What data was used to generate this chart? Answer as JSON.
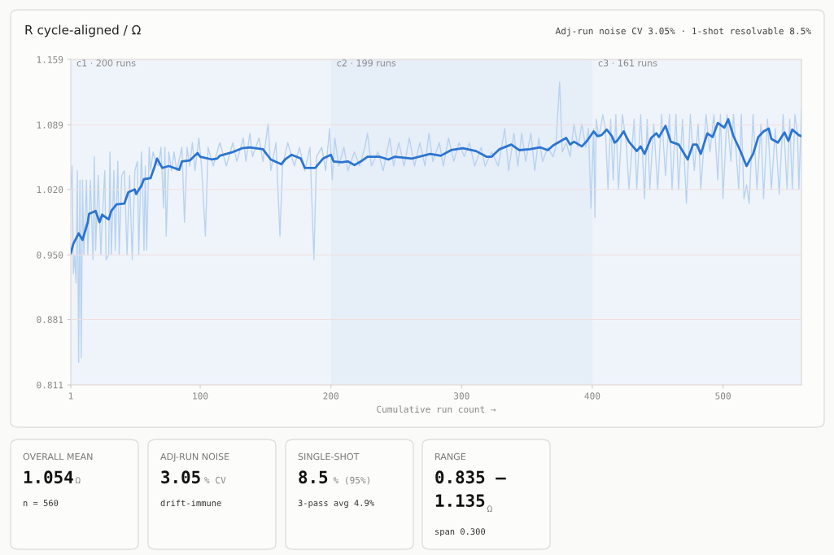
{
  "chart_data": [
    {
      "type": "line",
      "title": "R cycle-aligned / Ω",
      "subtitle": "Adj-run noise CV 3.05% · 1-shot resolvable 8.5%",
      "xlabel": "Cumulative run count →",
      "xlim": [
        1,
        560
      ],
      "xticks": [
        1,
        100,
        200,
        300,
        400,
        500
      ],
      "ylim": [
        0.811,
        1.159
      ],
      "yticks": [
        0.811,
        0.881,
        {
          "value": 0.95,
          "label": "0.950"
        },
        {
          "value": 1.02,
          "label": "1.020"
        },
        1.089,
        1.159
      ],
      "grid": "y",
      "marker": "none",
      "line_style": "solid",
      "bands": [
        {
          "axis": "x",
          "from": 1,
          "to": 200,
          "label": "c1 · 200 runs",
          "color": "#eff4fa"
        },
        {
          "axis": "x",
          "from": 200,
          "to": 400,
          "label": "c2 · 199 runs",
          "color": "#e6eef8"
        },
        {
          "axis": "x",
          "from": 400,
          "to": 560,
          "label": "c3 · 161 runs",
          "color": "#eff4fa"
        }
      ],
      "series": [
        {
          "color": "#b8d2ef",
          "x": [
            1,
            2,
            3,
            4,
            5,
            6,
            7,
            8,
            9,
            10,
            11,
            13,
            14,
            16,
            18,
            19,
            20,
            22,
            24,
            25,
            27,
            28,
            30,
            31,
            32,
            34,
            35,
            37,
            38,
            40,
            42,
            44,
            46,
            48,
            50,
            52,
            53,
            55,
            56,
            57,
            58,
            59,
            61,
            62,
            64,
            66,
            68,
            70,
            72,
            73,
            74,
            76,
            78,
            80,
            82,
            86,
            88,
            90,
            92,
            94,
            96,
            99,
            101,
            104,
            106,
            110,
            115,
            120,
            125,
            128,
            133,
            135,
            138,
            140,
            145,
            148,
            152,
            154,
            158,
            161,
            163,
            167,
            172,
            176,
            180,
            184,
            187,
            189,
            193,
            196,
            199,
            201,
            203,
            206,
            210,
            213,
            218,
            222,
            226,
            228,
            231,
            236,
            240,
            245,
            248,
            252,
            256,
            260,
            264,
            268,
            272,
            275,
            278,
            283,
            286,
            290,
            294,
            298,
            302,
            306,
            310,
            315,
            318,
            323,
            328,
            333,
            336,
            340,
            343,
            346,
            349,
            353,
            356,
            359,
            362,
            366,
            370,
            372,
            375,
            377,
            380,
            383,
            386,
            389,
            392,
            395,
            397,
            399,
            401,
            402,
            403,
            405,
            408,
            410,
            412,
            414,
            416,
            418,
            420,
            423,
            426,
            428,
            432,
            434,
            437,
            440,
            442,
            444,
            447,
            450,
            453,
            456,
            459,
            461,
            464,
            466,
            469,
            472,
            475,
            478,
            481,
            483,
            487,
            490,
            493,
            496,
            498,
            500,
            503,
            506,
            508,
            512,
            514,
            516,
            518,
            520,
            523,
            526,
            529,
            531,
            534,
            537,
            540,
            543,
            546,
            549,
            551,
            553,
            555,
            557,
            558,
            560
          ],
          "values": [
            1.02,
            1.045,
            0.93,
            0.95,
            0.92,
            1.04,
            0.835,
            1.03,
            0.84,
            1.03,
            0.95,
            1.03,
            0.95,
            1.03,
            0.945,
            1.055,
            0.955,
            1.035,
            0.95,
            0.985,
            1.04,
            0.945,
            0.95,
            1.06,
            0.95,
            1.04,
            0.955,
            1.05,
            0.95,
            1.035,
            1.04,
            0.95,
            1.035,
            0.945,
            1.04,
            1.05,
            0.95,
            1.06,
            1.02,
            0.955,
            1.045,
            0.955,
            1.065,
            1.04,
            1.06,
            1.05,
            1.045,
            1.065,
            1.0,
            1.065,
            0.97,
            1.06,
            1.04,
            1.06,
            1.04,
            1.065,
            0.985,
            1.065,
            1.045,
            1.07,
            1.04,
            1.075,
            1.045,
            0.97,
            1.065,
            1.045,
            1.07,
            1.045,
            1.07,
            1.05,
            1.075,
            1.05,
            1.08,
            1.055,
            1.075,
            1.05,
            1.09,
            1.04,
            1.07,
            0.97,
            1.045,
            1.07,
            1.045,
            1.065,
            1.04,
            1.065,
            0.945,
            1.055,
            1.065,
            1.04,
            1.085,
            1.03,
            1.075,
            1.045,
            1.065,
            1.04,
            1.06,
            1.045,
            1.065,
            1.08,
            1.045,
            1.06,
            1.04,
            1.075,
            1.045,
            1.07,
            1.045,
            1.075,
            1.045,
            1.07,
            1.045,
            1.08,
            1.05,
            1.07,
            1.045,
            1.075,
            1.05,
            1.07,
            1.055,
            1.07,
            1.045,
            1.065,
            1.045,
            1.06,
            1.045,
            1.085,
            1.04,
            1.08,
            1.045,
            1.08,
            1.05,
            1.08,
            1.04,
            1.075,
            1.05,
            1.065,
            1.055,
            1.065,
            1.135,
            1.06,
            1.07,
            1.055,
            1.09,
            1.065,
            1.09,
            1.065,
            1.085,
            1.0,
            1.085,
            0.99,
            1.095,
            1.075,
            1.1,
            1.085,
            1.02,
            1.095,
            1.03,
            1.1,
            1.02,
            1.1,
            1.07,
            1.02,
            1.095,
            1.02,
            1.1,
            1.01,
            1.095,
            1.02,
            1.09,
            1.02,
            1.1,
            1.035,
            1.1,
            1.02,
            1.1,
            1.02,
            1.095,
            1.005,
            1.1,
            1.04,
            1.09,
            1.02,
            1.1,
            1.06,
            1.1,
            1.03,
            1.1,
            1.01,
            1.1,
            1.05,
            1.1,
            1.02,
            1.1,
            1.01,
            1.025,
            1.005,
            1.1,
            1.02,
            1.09,
            1.01,
            1.095,
            1.02,
            1.085,
            1.015,
            1.1,
            1.02,
            1.095,
            1.02,
            1.1,
            1.08,
            1.02,
            1.105
          ]
        },
        {
          "color": "#2b74d0",
          "x": [
            1,
            3,
            7,
            10,
            14,
            15,
            20,
            23,
            25,
            30,
            32,
            36,
            42,
            45,
            50,
            51,
            55,
            57,
            62,
            65,
            67,
            71,
            76,
            84,
            86,
            92,
            98,
            100,
            109,
            113,
            115,
            125,
            132,
            138,
            148,
            154,
            162,
            165,
            170,
            177,
            180,
            188,
            194,
            200,
            202,
            208,
            213,
            218,
            223,
            228,
            237,
            244,
            249,
            262,
            276,
            284,
            292,
            301,
            311,
            319,
            323,
            329,
            338,
            344,
            352,
            360,
            366,
            370,
            380,
            383,
            386,
            392,
            396,
            401,
            404,
            407,
            411,
            415,
            417,
            419,
            424,
            428,
            434,
            437,
            440,
            445,
            449,
            451,
            456,
            460,
            466,
            473,
            477,
            480,
            483,
            488,
            492,
            496,
            501,
            504,
            508,
            513,
            518,
            523,
            527,
            531,
            535,
            537,
            542,
            547,
            550,
            553,
            558,
            560
          ],
          "values": [
            0.952,
            0.962,
            0.973,
            0.966,
            0.985,
            0.994,
            0.997,
            0.985,
            0.993,
            0.988,
            0.997,
            1.004,
            1.005,
            1.017,
            1.02,
            1.015,
            1.024,
            1.031,
            1.032,
            1.044,
            1.053,
            1.043,
            1.045,
            1.041,
            1.05,
            1.051,
            1.059,
            1.055,
            1.052,
            1.053,
            1.056,
            1.06,
            1.064,
            1.065,
            1.063,
            1.052,
            1.047,
            1.052,
            1.057,
            1.053,
            1.043,
            1.043,
            1.053,
            1.057,
            1.05,
            1.049,
            1.05,
            1.046,
            1.05,
            1.055,
            1.055,
            1.052,
            1.055,
            1.053,
            1.058,
            1.056,
            1.062,
            1.064,
            1.061,
            1.055,
            1.055,
            1.063,
            1.068,
            1.062,
            1.063,
            1.065,
            1.062,
            1.067,
            1.075,
            1.068,
            1.071,
            1.066,
            1.072,
            1.082,
            1.077,
            1.078,
            1.084,
            1.077,
            1.07,
            1.072,
            1.082,
            1.071,
            1.061,
            1.066,
            1.058,
            1.075,
            1.08,
            1.076,
            1.088,
            1.071,
            1.068,
            1.052,
            1.068,
            1.068,
            1.058,
            1.08,
            1.076,
            1.091,
            1.086,
            1.095,
            1.077,
            1.062,
            1.045,
            1.058,
            1.076,
            1.082,
            1.085,
            1.074,
            1.07,
            1.081,
            1.072,
            1.084,
            1.078,
            1.077
          ]
        }
      ]
    },
    {
      "type": "other",
      "annotations": [
        "OVERALL MEAN",
        "1.054",
        "Ω",
        "n = 560",
        "ADJ-RUN NOISE",
        "3.05",
        "% CV",
        "drift-immune",
        "SINGLE-SHOT",
        "8.5",
        "% (95%)",
        "3-pass avg 4.9%",
        "RANGE",
        "0.835 –\n1.135",
        "Ω",
        "span 0.300"
      ]
    }
  ]
}
